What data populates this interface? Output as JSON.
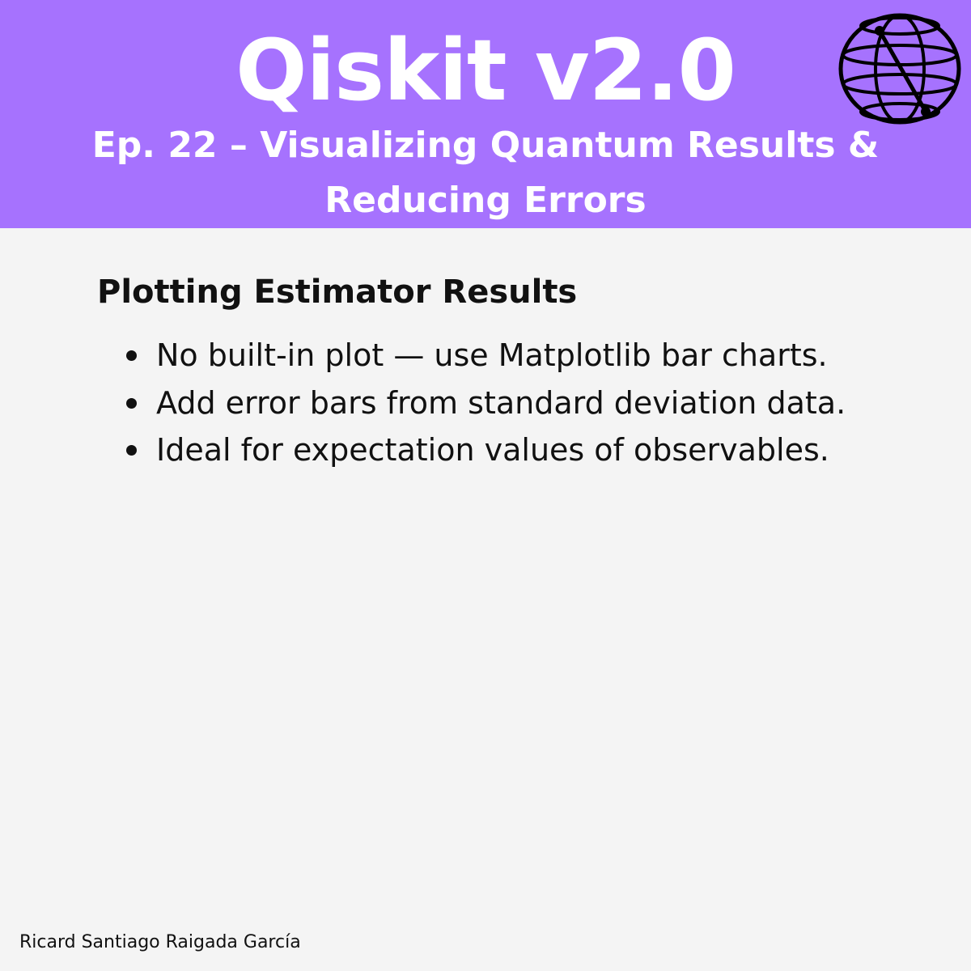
{
  "header": {
    "title": "Qiskit v2.0",
    "subtitle": "Ep. 22 – Visualizing Quantum Results & Reducing Errors",
    "background_color": "#a672fe",
    "logo_icon": "bloch-sphere-icon"
  },
  "content": {
    "heading": "Plotting Estimator Results",
    "bullets": [
      "No built-in plot — use Matplotlib bar charts.",
      "Add error bars from standard deviation data.",
      "Ideal for expectation values of observables."
    ]
  },
  "footer": {
    "author": "Ricard Santiago Raigada García"
  },
  "colors": {
    "page_background": "#f4f4f4",
    "text": "#111111"
  }
}
